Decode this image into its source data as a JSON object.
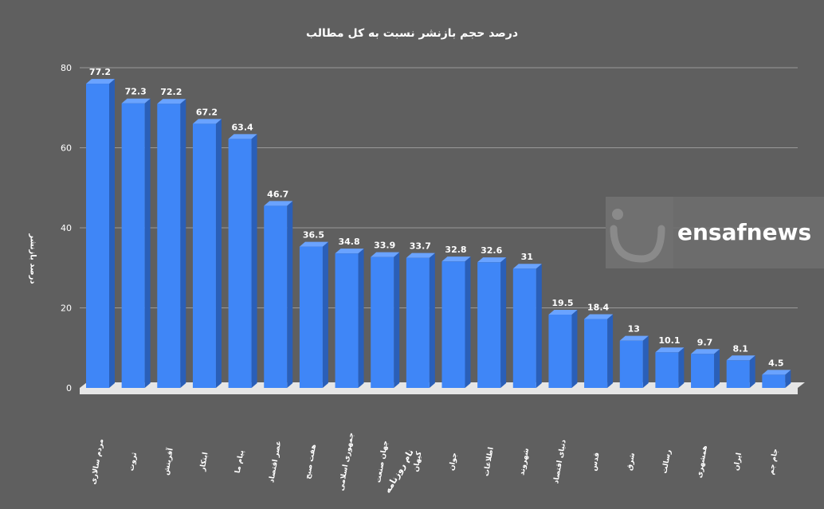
{
  "watermark": {
    "text": "ensafnews"
  },
  "chart_data": {
    "type": "bar",
    "title": "درصد حجم بازنشر نسبت به کل مطالب",
    "xlabel": "نام روزنامه",
    "ylabel": "درصد بازنشر",
    "ylim": [
      0,
      80
    ],
    "yticks": [
      0,
      20,
      40,
      60,
      80
    ],
    "grid": true,
    "categories": [
      "مردم سالاری",
      "ثروت",
      "آفرینش",
      "ابتکار",
      "پیام ما",
      "عصر اقتصاد",
      "هفت صبح",
      "جمهوری اسلامی",
      "جهان صنعت",
      "کیهان",
      "جوان",
      "اطلاعات",
      "شهروند",
      "دنیای اقتصاد",
      "قدس",
      "شرق",
      "رسالت",
      "همشهری",
      "ایران",
      "جام جم"
    ],
    "values": [
      77.2,
      72.3,
      72.2,
      67.2,
      63.4,
      46.7,
      36.5,
      34.8,
      33.9,
      33.7,
      32.8,
      32.6,
      31,
      19.5,
      18.4,
      13,
      10.1,
      9.7,
      8.1,
      4.5
    ],
    "value_labels": [
      "77.2",
      "72.3",
      "72.2",
      "67.2",
      "63.4",
      "46.7",
      "36.5",
      "34.8",
      "33.9",
      "33.7",
      "32.8",
      "32.6",
      "31",
      "19.5",
      "18.4",
      "13",
      "10.1",
      "9.7",
      "8.1",
      "4.5"
    ],
    "colors": {
      "bar_front": "#3f86f7",
      "bar_side": "#2a5fb8",
      "bar_top": "#6aa3ff",
      "background": "#5f5f5f",
      "grid": "#9a9a9a",
      "floor": "#e6e6e6"
    }
  }
}
